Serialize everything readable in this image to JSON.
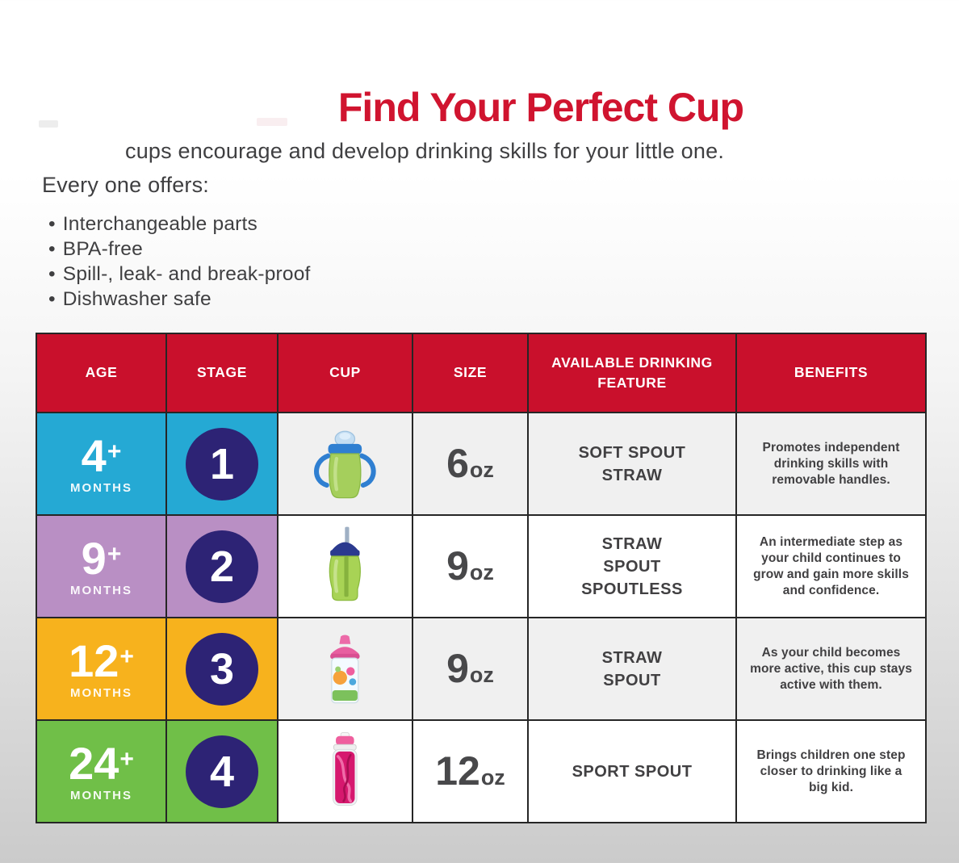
{
  "title": "Find Your Perfect Cup",
  "intro": {
    "subtitle": "cups encourage and develop drinking skills for your little one.",
    "offers_heading": "Every one offers:",
    "bullet_glyph": "•",
    "bullets": [
      "Interchangeable parts",
      "BPA-free",
      "Spill-, leak- and break-proof",
      "Dishwasher safe"
    ]
  },
  "colors": {
    "title_red": "#d0142f",
    "header_red": "#c9102c",
    "stage_circle_navy": "#2d2375",
    "row_blue": "#25a9d4",
    "row_lavender": "#b98fc4",
    "row_amber": "#f7b21d",
    "row_green": "#70bf48",
    "alt_cell_gray": "#f0f0f0",
    "text_dark": "#414042"
  },
  "table": {
    "headers": [
      "AGE",
      "STAGE",
      "CUP",
      "SIZE",
      "AVAILABLE DRINKING FEATURE",
      "BENEFITS"
    ],
    "rows": [
      {
        "age_number": "4",
        "age_suffix": "+",
        "age_unit": "MONTHS",
        "age_color": "#25a9d4",
        "cell_bg": "#f0f0f0",
        "stage": "1",
        "cup_icon": "trainer-cup-soft-spout",
        "size_number": "6",
        "size_unit": "oz",
        "feature_lines": [
          "SOFT SPOUT",
          "STRAW"
        ],
        "benefit": "Promotes independent drinking skills with removable handles."
      },
      {
        "age_number": "9",
        "age_suffix": "+",
        "age_unit": "MONTHS",
        "age_color": "#b98fc4",
        "cell_bg": "#ffffff",
        "stage": "2",
        "cup_icon": "straw-cup",
        "size_number": "9",
        "size_unit": "oz",
        "feature_lines": [
          "STRAW",
          "SPOUT",
          "SPOUTLESS"
        ],
        "benefit": "An intermediate step as your child continues to grow and gain more skills and confidence."
      },
      {
        "age_number": "12",
        "age_suffix": "+",
        "age_unit": "MONTHS",
        "age_color": "#f7b21d",
        "cell_bg": "#f0f0f0",
        "stage": "3",
        "cup_icon": "insulated-spout-cup",
        "size_number": "9",
        "size_unit": "oz",
        "feature_lines": [
          "STRAW",
          "SPOUT"
        ],
        "benefit": "As your child becomes more active, this cup stays active with them."
      },
      {
        "age_number": "24",
        "age_suffix": "+",
        "age_unit": "MONTHS",
        "age_color": "#70bf48",
        "cell_bg": "#ffffff",
        "stage": "4",
        "cup_icon": "sport-spout-bottle",
        "size_number": "12",
        "size_unit": "oz",
        "feature_lines": [
          "SPORT SPOUT"
        ],
        "benefit": "Brings children one step closer to drinking like a big kid."
      }
    ]
  }
}
